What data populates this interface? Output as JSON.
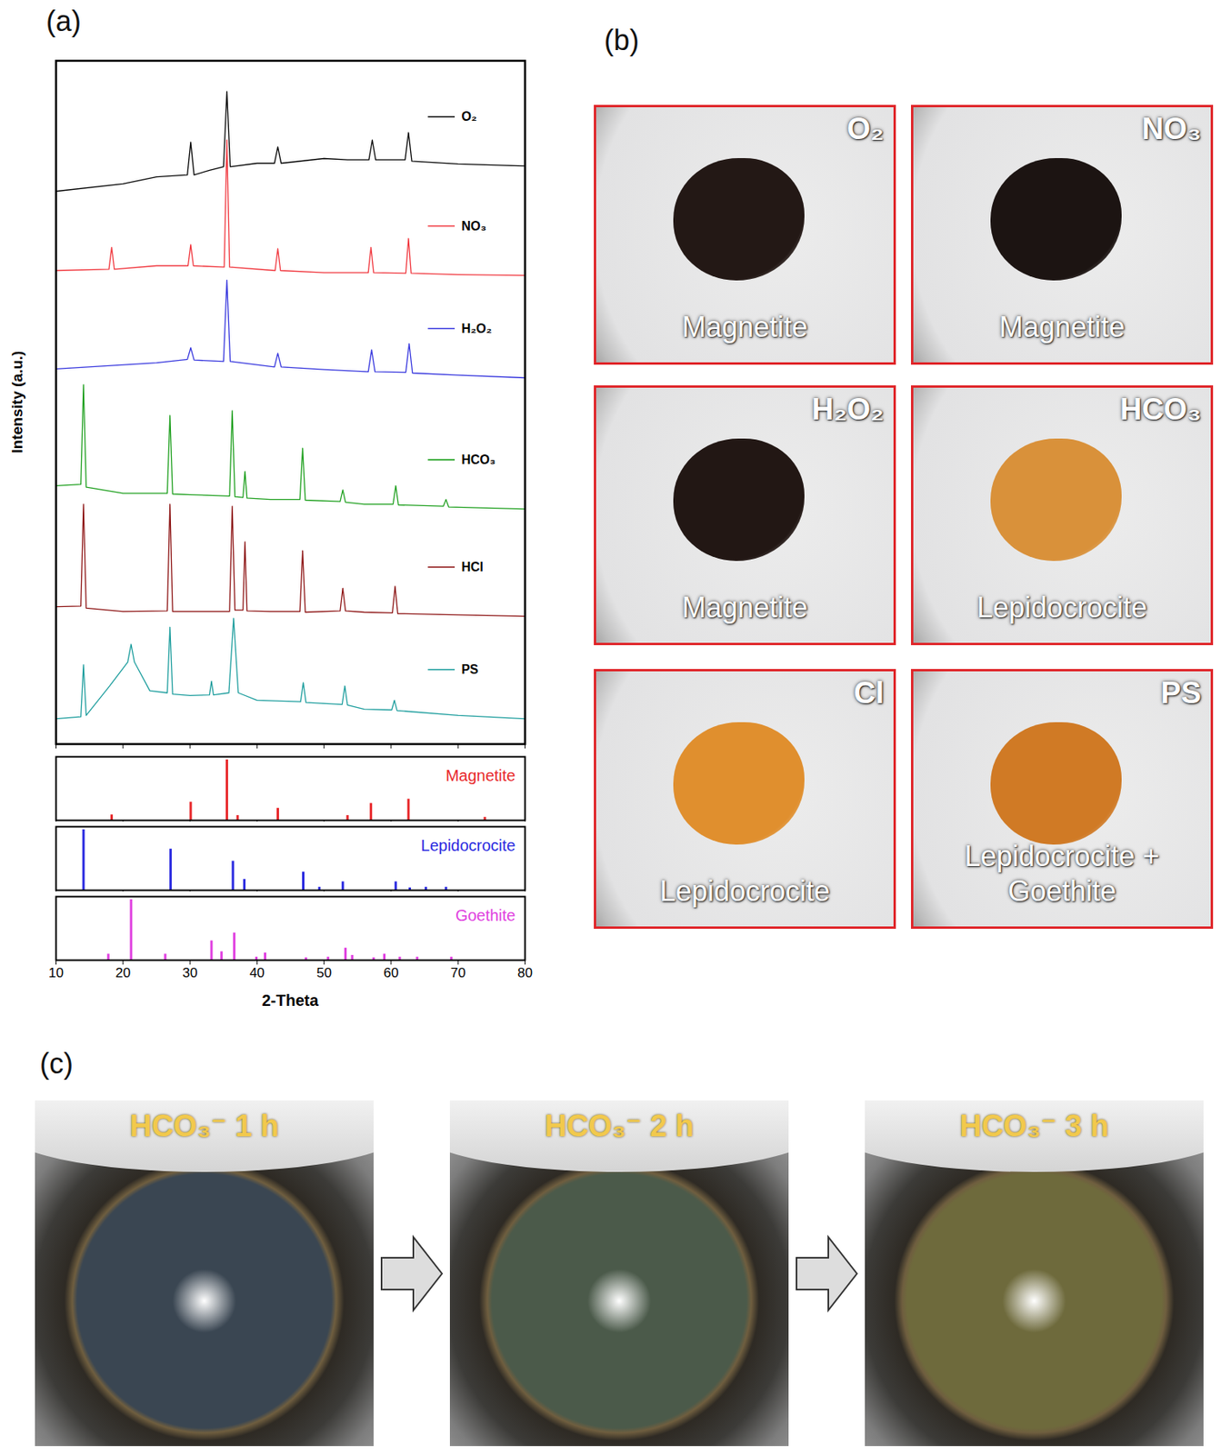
{
  "chart_data": [
    {
      "type": "line",
      "ylabel": "Intensity (a.u.)",
      "xlim": [
        10,
        80
      ],
      "xticks": [
        10,
        20,
        30,
        40,
        50,
        60,
        70,
        80
      ],
      "ylim": [
        0,
        100
      ],
      "tick_labels": false,
      "legend": "right",
      "series": [
        {
          "name": "O₂",
          "color": "#000000",
          "x": [
            10,
            20,
            25,
            29.6,
            30.1,
            30.6,
            33,
            35.0,
            35.5,
            36.0,
            40,
            42.6,
            43.1,
            43.6,
            50,
            53.5,
            56.7,
            57.2,
            57.7,
            62.1,
            62.6,
            63.1,
            70,
            80
          ],
          "values": [
            80.9,
            82,
            83,
            83.3,
            88.1,
            83.3,
            84,
            84.5,
            95.5,
            84.5,
            85,
            85,
            87.4,
            85,
            85.7,
            85.5,
            85.5,
            88.4,
            85.5,
            85.5,
            89.5,
            85.3,
            84.9,
            84.6
          ]
        },
        {
          "name": "NO₃",
          "color": "#f0333a",
          "x": [
            10,
            17.9,
            18.3,
            18.7,
            25,
            29.7,
            30.1,
            30.5,
            35.1,
            35.5,
            35.9,
            42.7,
            43.1,
            43.5,
            50,
            56.6,
            57.0,
            57.4,
            62.2,
            62.6,
            63.0,
            70,
            80
          ],
          "values": [
            69.3,
            69.5,
            72.7,
            69.5,
            70,
            70,
            73.1,
            70,
            69.8,
            88.4,
            69.8,
            69.3,
            72.5,
            69.3,
            69,
            69,
            72.7,
            69,
            68.9,
            74,
            68.9,
            68.7,
            68.6
          ]
        },
        {
          "name": "H₂O₂",
          "color": "#3333dd",
          "x": [
            10,
            25,
            29.6,
            30.1,
            30.6,
            35.0,
            35.5,
            36.0,
            42.6,
            43.1,
            43.6,
            50,
            56.6,
            57.1,
            57.6,
            62.2,
            62.7,
            63.2,
            70,
            80
          ],
          "values": [
            54.9,
            55.8,
            56.3,
            58,
            56.2,
            56,
            67.9,
            56,
            55.2,
            57.2,
            55.2,
            54.8,
            54.5,
            57.7,
            54.5,
            54.4,
            58.6,
            54.3,
            54,
            53.6
          ]
        },
        {
          "name": "HCO₃",
          "color": "#1b9e1b",
          "x": [
            10,
            13.7,
            14.1,
            14.5,
            20,
            26.6,
            27.0,
            27.4,
            30,
            35.9,
            36.3,
            36.7,
            37.9,
            38.2,
            38.5,
            42,
            46.4,
            46.8,
            47.2,
            52.4,
            52.8,
            53.2,
            56,
            60.3,
            60.7,
            61.1,
            67.8,
            68.2,
            68.6,
            80
          ],
          "values": [
            37.8,
            38,
            52.6,
            37.6,
            36.7,
            36.7,
            48.1,
            36.6,
            36.5,
            36.3,
            48.8,
            36.2,
            36.1,
            39.9,
            36,
            35.8,
            35.8,
            43.3,
            35.7,
            35.5,
            37.2,
            35.4,
            35.1,
            35.1,
            37.8,
            35,
            34.8,
            35.8,
            34.7,
            34.4
          ]
        },
        {
          "name": "HCl",
          "color": "#8b1010",
          "x": [
            10,
            13.7,
            14.1,
            14.5,
            20,
            26.6,
            27.0,
            27.4,
            30,
            35.9,
            36.3,
            36.7,
            37.9,
            38.2,
            38.5,
            42,
            46.4,
            46.8,
            47.2,
            52.4,
            52.8,
            53.2,
            56,
            60.2,
            60.6,
            61.0,
            70,
            80
          ],
          "values": [
            20.1,
            20.2,
            35.1,
            19.9,
            19.4,
            19.5,
            35.1,
            19.4,
            19.4,
            19.4,
            34.8,
            19.6,
            19.6,
            29.6,
            19.5,
            19.4,
            19.4,
            28.3,
            19.3,
            19.5,
            22.8,
            19.5,
            19.3,
            19.2,
            23.1,
            19.1,
            18.9,
            18.7
          ]
        },
        {
          "name": "PS",
          "color": "#1a9c9c",
          "x": [
            10,
            13.7,
            14.1,
            14.5,
            18,
            20.7,
            21.2,
            21.7,
            24,
            26.6,
            27.0,
            27.4,
            30,
            32.9,
            33.2,
            33.5,
            35.8,
            36.5,
            37.2,
            40,
            46.5,
            46.9,
            47.3,
            52.7,
            53.1,
            53.5,
            56,
            60.1,
            60.5,
            60.9,
            70,
            80
          ],
          "values": [
            3.7,
            4,
            11.6,
            4.2,
            8.5,
            12,
            14.6,
            12,
            7.8,
            7.5,
            17.1,
            7.3,
            7.1,
            7.2,
            9.2,
            7.2,
            7.5,
            18.4,
            7.5,
            6.4,
            6.2,
            9,
            6.1,
            5.8,
            8.5,
            5.7,
            5.1,
            5,
            6.4,
            4.9,
            4.2,
            3.7
          ]
        }
      ]
    },
    {
      "type": "stick",
      "title": "Magnetite",
      "color": "#e8282b",
      "xlim": [
        10,
        80
      ],
      "xticks": [
        10,
        20,
        30,
        40,
        50,
        60,
        70,
        80
      ],
      "ylim": [
        0,
        105
      ],
      "tick_labels": false,
      "x": [
        18.3,
        30.1,
        35.5,
        37.1,
        43.1,
        53.5,
        57.0,
        62.6,
        74.0
      ],
      "values": [
        9,
        30,
        100,
        8,
        20,
        8,
        28,
        35,
        5
      ]
    },
    {
      "type": "stick",
      "title": "Lepidocrocite",
      "color": "#2a2ae0",
      "xlim": [
        10,
        80
      ],
      "xticks": [
        10,
        20,
        30,
        40,
        50,
        60,
        70,
        80
      ],
      "ylim": [
        0,
        105
      ],
      "tick_labels": false,
      "x": [
        14.1,
        27.1,
        36.4,
        38.1,
        46.9,
        49.3,
        52.8,
        60.7,
        62.8,
        65.2,
        68.2
      ],
      "values": [
        100,
        68,
        48,
        18,
        30,
        5,
        14,
        14,
        4,
        5,
        5
      ]
    },
    {
      "type": "stick",
      "title": "Goethite",
      "color": "#e040e0",
      "xlim": [
        10,
        80
      ],
      "xticks": [
        10,
        20,
        30,
        40,
        50,
        60,
        70,
        80
      ],
      "ylim": [
        0,
        105
      ],
      "tick_labels": "x",
      "xlabel": "2-Theta",
      "x": [
        17.8,
        21.2,
        26.3,
        33.2,
        34.7,
        36.6,
        39.9,
        41.2,
        47.3,
        50.6,
        53.2,
        54.2,
        57.4,
        59.0,
        61.3,
        63.9,
        69.0
      ],
      "values": [
        10,
        100,
        10,
        32,
        14,
        45,
        5,
        12,
        4,
        5,
        20,
        8,
        4,
        10,
        5,
        5,
        5
      ]
    }
  ],
  "panels": {
    "a": {
      "letter": "(a)"
    },
    "b": {
      "letter": "(b)",
      "photos": [
        {
          "label": "O₂",
          "content": "Magnetite",
          "color": "#231815"
        },
        {
          "label": "NO₃",
          "content": "Magnetite",
          "color": "#1c1412"
        },
        {
          "label": "H₂O₂",
          "content": "Magnetite",
          "color": "#221714"
        },
        {
          "label": "HCO₃",
          "content": "Lepidocrocite",
          "color": "#d9913a"
        },
        {
          "label": "Cl",
          "content": "Lepidocrocite",
          "color": "#e08f2e"
        },
        {
          "label": "PS",
          "content": "Lepidocrocite + Goethite",
          "color": "#d07a25"
        }
      ]
    },
    "c": {
      "letter": "(c)",
      "photos": [
        {
          "label": "HCO₃⁻ 1 h",
          "color": "#3a4652"
        },
        {
          "label": "HCO₃⁻ 2 h",
          "color": "#4b5a4a"
        },
        {
          "label": "HCO₃⁻ 3 h",
          "color": "#6e6a3c"
        }
      ]
    }
  }
}
